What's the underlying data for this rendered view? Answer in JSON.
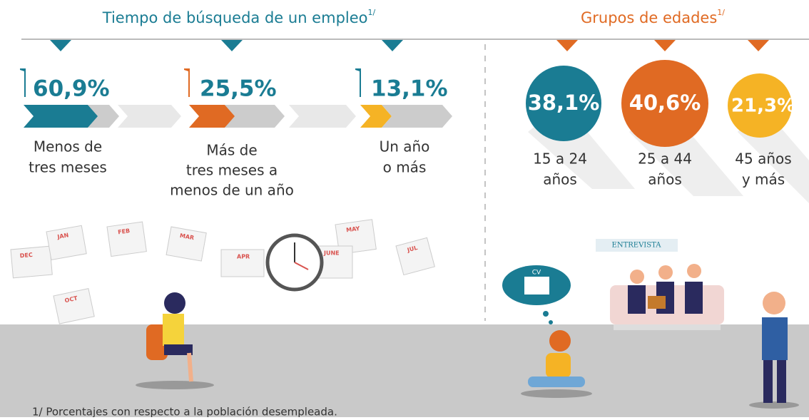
{
  "left": {
    "title": "Tiempo de búsqueda de un empleo",
    "note_ref": "1/",
    "items": [
      {
        "value": "60,9%",
        "lines": [
          "Menos de",
          "tres meses"
        ]
      },
      {
        "value": "25,5%",
        "lines": [
          "Más de",
          "tres meses a",
          "menos de un año"
        ]
      },
      {
        "value": "13,1%",
        "lines": [
          "Un año",
          "o más"
        ]
      }
    ]
  },
  "right": {
    "title": "Grupos de edades",
    "note_ref": "1/",
    "items": [
      {
        "value": "38,1%",
        "lines": [
          "15 a 24",
          "años"
        ]
      },
      {
        "value": "40,6%",
        "lines": [
          "25 a 44",
          "años"
        ]
      },
      {
        "value": "21,3%",
        "lines": [
          "45 años",
          "y más"
        ]
      }
    ]
  },
  "calendar_months": [
    "DEC",
    "JAN",
    "FEB",
    "MAR",
    "APR",
    "MAY",
    "JUNE",
    "JUL",
    "OCT"
  ],
  "interview_sign": "ENTREVISTA",
  "cv": "CV",
  "footnote": "1/ Porcentajes con respecto a la población desempleada."
}
